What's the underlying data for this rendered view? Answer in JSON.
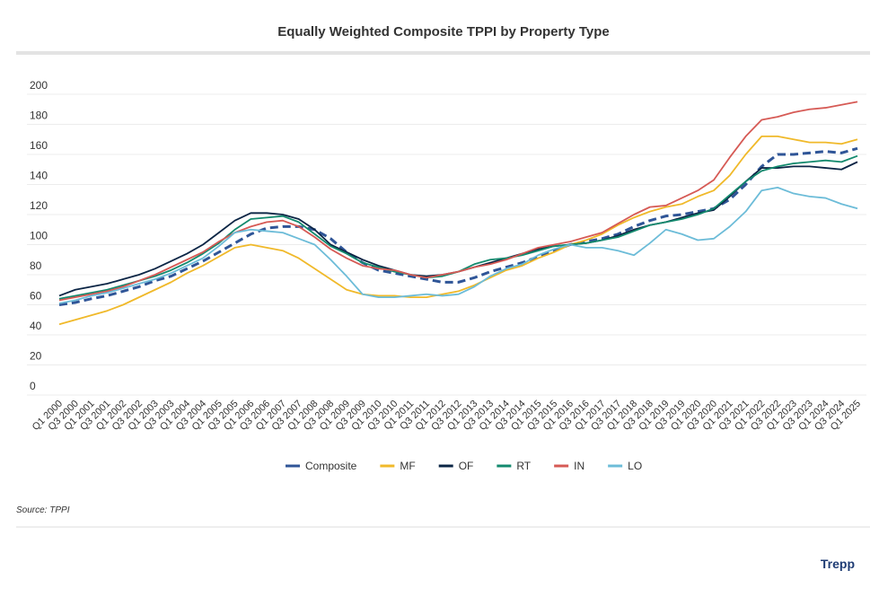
{
  "chart_data": {
    "type": "line",
    "title": "Equally Weighted Composite TPPI by Property Type",
    "categories": [
      "Q1 2000",
      "Q3 2000",
      "Q1 2001",
      "Q3 2001",
      "Q1 2002",
      "Q3 2002",
      "Q1 2003",
      "Q3 2003",
      "Q1 2004",
      "Q3 2004",
      "Q1 2005",
      "Q3 2005",
      "Q1 2006",
      "Q3 2006",
      "Q1 2007",
      "Q3 2007",
      "Q1 2008",
      "Q3 2008",
      "Q1 2009",
      "Q3 2009",
      "Q1 2010",
      "Q3 2010",
      "Q1 2011",
      "Q3 2011",
      "Q1 2012",
      "Q3 2012",
      "Q1 2013",
      "Q3 2013",
      "Q1 2014",
      "Q3 2014",
      "Q1 2015",
      "Q3 2015",
      "Q1 2016",
      "Q3 2016",
      "Q1 2017",
      "Q3 2017",
      "Q1 2018",
      "Q3 2018",
      "Q1 2019",
      "Q3 2019",
      "Q1 2020",
      "Q3 2020",
      "Q1 2021",
      "Q3 2021",
      "Q1 2022",
      "Q3 2022",
      "Q1 2023",
      "Q3 2023",
      "Q1 2024",
      "Q3 2024",
      "Q1 2025"
    ],
    "series": [
      {
        "name": "Composite",
        "color": "#2f5597",
        "dashed": true,
        "values": [
          60,
          61.5,
          64,
          66,
          69,
          72,
          76,
          79,
          84,
          89,
          95,
          101,
          107,
          111,
          112,
          112,
          110,
          104,
          95,
          88,
          83,
          81,
          79,
          77,
          75,
          75,
          78,
          82,
          85,
          88,
          92,
          96,
          100,
          102,
          104,
          107,
          112,
          116,
          119,
          120,
          122,
          124,
          130,
          140,
          152,
          160,
          160,
          161,
          162,
          161,
          164
        ]
      },
      {
        "name": "MF",
        "color": "#f0b92a",
        "values": [
          47,
          50,
          53,
          56,
          60,
          65,
          70,
          75,
          81,
          86,
          92,
          98,
          100,
          98,
          96,
          91,
          84,
          77,
          70,
          67,
          66,
          66,
          65,
          65,
          67,
          69,
          73,
          78,
          83,
          86,
          91,
          95,
          100,
          103,
          107,
          113,
          118,
          122,
          125,
          127,
          132,
          136,
          146,
          160,
          172,
          172,
          170,
          168,
          168,
          167,
          170
        ]
      },
      {
        "name": "OF",
        "color": "#0b2545",
        "values": [
          66,
          70,
          72,
          74,
          77,
          80,
          84,
          89,
          94,
          100,
          108,
          116,
          121,
          121,
          120,
          117,
          110,
          100,
          95,
          90,
          86,
          83,
          80,
          79,
          80,
          82,
          85,
          88,
          91,
          94,
          97,
          99,
          100,
          101,
          103,
          106,
          110,
          113,
          115,
          118,
          121,
          123,
          132,
          142,
          151,
          151,
          152,
          152,
          151,
          150,
          155
        ]
      },
      {
        "name": "RT",
        "color": "#138a6e",
        "values": [
          64,
          66,
          68,
          70,
          73,
          76,
          79,
          83,
          88,
          94,
          101,
          110,
          117,
          118,
          119,
          115,
          107,
          99,
          94,
          88,
          85,
          82,
          80,
          78,
          79,
          82,
          87,
          90,
          91,
          93,
          96,
          99,
          100,
          101,
          103,
          105,
          109,
          113,
          115,
          117,
          120,
          124,
          133,
          142,
          149,
          152,
          154,
          155,
          156,
          155,
          159
        ]
      },
      {
        "name": "IN",
        "color": "#d65a55",
        "values": [
          63,
          65,
          67,
          69,
          72,
          76,
          80,
          85,
          90,
          95,
          102,
          108,
          112,
          115,
          116,
          112,
          105,
          97,
          91,
          86,
          84,
          83,
          80,
          78,
          80,
          82,
          85,
          87,
          90,
          94,
          98,
          100,
          102,
          105,
          108,
          114,
          120,
          125,
          126,
          131,
          136,
          143,
          158,
          172,
          183,
          185,
          188,
          190,
          191,
          193,
          195
        ]
      },
      {
        "name": "LO",
        "color": "#6cbcd8",
        "values": [
          61,
          63,
          66,
          68,
          71,
          74,
          77,
          81,
          86,
          91,
          99,
          108,
          110,
          109,
          108,
          104,
          100,
          90,
          79,
          67,
          65,
          65,
          66,
          67,
          66,
          67,
          72,
          79,
          84,
          87,
          93,
          97,
          100,
          98,
          98,
          96,
          93,
          101,
          110,
          107,
          103,
          104,
          112,
          122,
          136,
          138,
          134,
          132,
          131,
          127,
          124
        ]
      }
    ],
    "ylim": [
      0,
      200
    ],
    "yticks": [
      0,
      20,
      40,
      60,
      80,
      100,
      120,
      140,
      160,
      180,
      200
    ],
    "grid": true
  },
  "source": "Source: TPPI",
  "logo": "Trepp"
}
